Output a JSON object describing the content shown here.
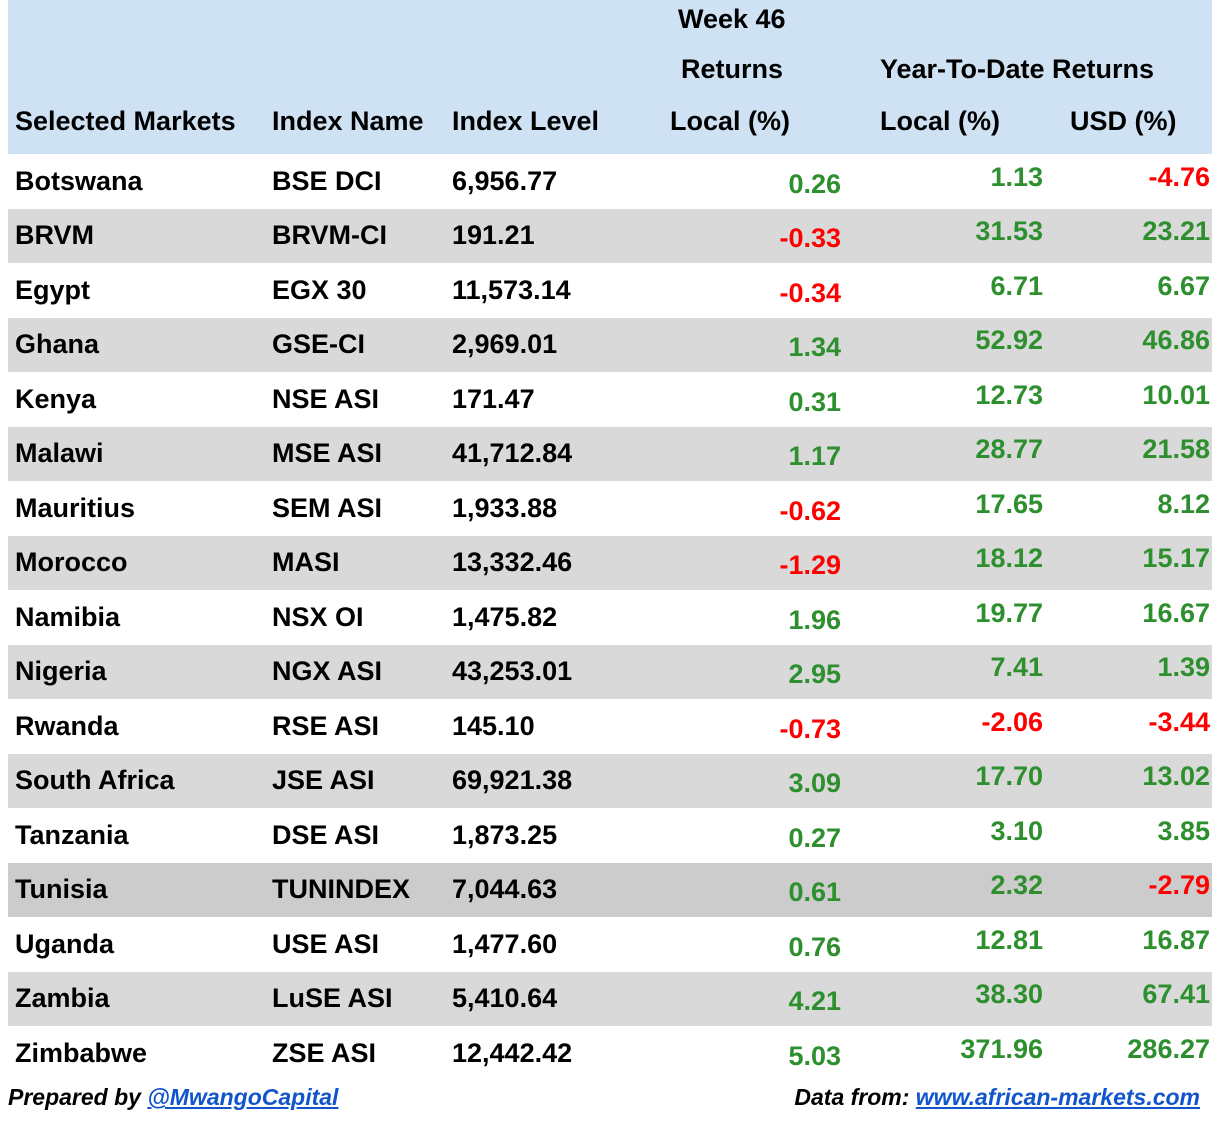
{
  "header": {
    "week_line1": "Week 46",
    "week_line2": "Returns",
    "ytd_title": "Year-To-Date Returns",
    "col_market": "Selected Markets",
    "col_index": "Index Name",
    "col_level": "Index Level",
    "col_week_local": "Local (%)",
    "col_ytd_local": "Local (%)",
    "col_ytd_usd": "USD (%)"
  },
  "colors": {
    "header_bg": "#cfe2f3",
    "row_shade": "#d9d9d9",
    "positive": "#2d8f2d",
    "negative": "#ff0000",
    "link": "#1155cc"
  },
  "rows": [
    {
      "market": "Botswana",
      "index": "BSE DCI",
      "level": "6,956.77",
      "week": "0.26",
      "ytd_local": "1.13",
      "ytd_usd": "-4.76"
    },
    {
      "market": "BRVM",
      "index": "BRVM-CI",
      "level": "191.21",
      "week": "-0.33",
      "ytd_local": "31.53",
      "ytd_usd": "23.21"
    },
    {
      "market": "Egypt",
      "index": "EGX 30",
      "level": "11,573.14",
      "week": "-0.34",
      "ytd_local": "6.71",
      "ytd_usd": "6.67"
    },
    {
      "market": "Ghana",
      "index": "GSE-CI",
      "level": "2,969.01",
      "week": "1.34",
      "ytd_local": "52.92",
      "ytd_usd": "46.86"
    },
    {
      "market": "Kenya",
      "index": "NSE ASI",
      "level": "171.47",
      "week": "0.31",
      "ytd_local": "12.73",
      "ytd_usd": "10.01"
    },
    {
      "market": "Malawi",
      "index": "MSE ASI",
      "level": "41,712.84",
      "week": "1.17",
      "ytd_local": "28.77",
      "ytd_usd": "21.58"
    },
    {
      "market": "Mauritius",
      "index": "SEM ASI",
      "level": "1,933.88",
      "week": "-0.62",
      "ytd_local": "17.65",
      "ytd_usd": "8.12"
    },
    {
      "market": "Morocco",
      "index": "MASI",
      "level": "13,332.46",
      "week": "-1.29",
      "ytd_local": "18.12",
      "ytd_usd": "15.17"
    },
    {
      "market": "Namibia",
      "index": "NSX OI",
      "level": "1,475.82",
      "week": "1.96",
      "ytd_local": "19.77",
      "ytd_usd": "16.67"
    },
    {
      "market": "Nigeria",
      "index": "NGX ASI",
      "level": "43,253.01",
      "week": "2.95",
      "ytd_local": "7.41",
      "ytd_usd": "1.39"
    },
    {
      "market": "Rwanda",
      "index": "RSE ASI",
      "level": "145.10",
      "week": "-0.73",
      "ytd_local": "-2.06",
      "ytd_usd": "-3.44"
    },
    {
      "market": "South Africa",
      "index": "JSE ASI",
      "level": "69,921.38",
      "week": "3.09",
      "ytd_local": "17.70",
      "ytd_usd": "13.02"
    },
    {
      "market": "Tanzania",
      "index": "DSE ASI",
      "level": "1,873.25",
      "week": "0.27",
      "ytd_local": "3.10",
      "ytd_usd": "3.85"
    },
    {
      "market": "Tunisia",
      "index": "TUNINDEX",
      "level": "7,044.63",
      "week": "0.61",
      "ytd_local": "2.32",
      "ytd_usd": "-2.79"
    },
    {
      "market": "Uganda",
      "index": "USE ASI",
      "level": "1,477.60",
      "week": "0.76",
      "ytd_local": "12.81",
      "ytd_usd": "16.87"
    },
    {
      "market": "Zambia",
      "index": "LuSE ASI",
      "level": "5,410.64",
      "week": "4.21",
      "ytd_local": "38.30",
      "ytd_usd": "67.41"
    },
    {
      "market": "Zimbabwe",
      "index": "ZSE ASI",
      "level": "12,442.42",
      "week": "5.03",
      "ytd_local": "371.96",
      "ytd_usd": "286.27"
    }
  ],
  "footer": {
    "prepared_label": "Prepared by ",
    "prepared_handle": "@MwangoCapital",
    "source_label": "Data from: ",
    "source_link": "www.african-markets.com"
  }
}
